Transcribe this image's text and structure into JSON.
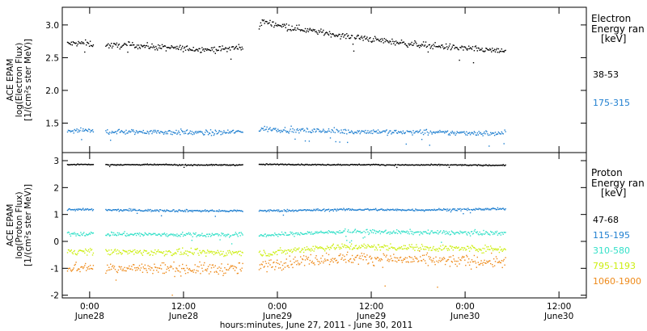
{
  "chart_data": {
    "type": "scatter",
    "x_axis": {
      "label": "hours:minutes, June 27, 2011 - June 30, 2011",
      "range_hours": [
        -3.5,
        63.5
      ],
      "ticks": [
        {
          "hour": 0,
          "time": "0:00",
          "date": "June28"
        },
        {
          "hour": 12,
          "time": "12:00",
          "date": "June28"
        },
        {
          "hour": 24,
          "time": "0:00",
          "date": "June29"
        },
        {
          "hour": 36,
          "time": "12:00",
          "date": "June29"
        },
        {
          "hour": 48,
          "time": "0:00",
          "date": "June30"
        },
        {
          "hour": 60,
          "time": "12:00",
          "date": "June30"
        }
      ]
    },
    "data_gaps_hours": [
      [
        0.5,
        2.0
      ],
      [
        19.6,
        21.6
      ]
    ],
    "data_end_hour": 53.2,
    "panels": [
      {
        "id": "electron",
        "ylabel_lines": [
          "ACE EPAM",
          "log(Electron Flux)",
          "[1/(cm²s ster MeV)]"
        ],
        "ylim": [
          1.05,
          3.27
        ],
        "yticks": [
          "1.5",
          "2.0",
          "2.5",
          "3.0"
        ],
        "legend_title": [
          "Electron",
          "Energy ran",
          "[keV]"
        ],
        "series": [
          {
            "name": "38-53",
            "color": "#000000",
            "spread": 0.045,
            "values": [
              2.72,
              2.73,
              2.7,
              2.69,
              2.7,
              2.68,
              2.66,
              2.65,
              2.64,
              2.63,
              2.65,
              2.67,
              3.06,
              3.01,
              2.96,
              2.92,
              2.88,
              2.84,
              2.81,
              2.78,
              2.75,
              2.72,
              2.7,
              2.68,
              2.66,
              2.64,
              2.62,
              2.6
            ]
          },
          {
            "name": "175-315",
            "color": "#1f7fd0",
            "spread": 0.04,
            "values": [
              1.39,
              1.39,
              1.38,
              1.38,
              1.37,
              1.38,
              1.37,
              1.37,
              1.36,
              1.36,
              1.37,
              1.38,
              1.42,
              1.41,
              1.4,
              1.39,
              1.39,
              1.38,
              1.38,
              1.38,
              1.37,
              1.37,
              1.37,
              1.36,
              1.36,
              1.36,
              1.35,
              1.35
            ]
          }
        ]
      },
      {
        "id": "proton",
        "ylabel_lines": [
          "ACE EPAM",
          "log(Proton Flux)",
          "[1/(cm²s ster MeV)]"
        ],
        "ylim": [
          -2.1,
          3.3
        ],
        "yticks": [
          "-2",
          "-1",
          "0",
          "1",
          "2",
          "3"
        ],
        "legend_title": [
          "Proton",
          "Energy ran",
          "[keV]"
        ],
        "series": [
          {
            "name": "47-68",
            "color": "#000000",
            "spread": 0.02,
            "values": [
              2.88,
              2.88,
              2.87,
              2.87,
              2.87,
              2.87,
              2.87,
              2.86,
              2.86,
              2.86,
              2.86,
              2.86,
              2.88,
              2.88,
              2.88,
              2.87,
              2.87,
              2.87,
              2.87,
              2.87,
              2.86,
              2.86,
              2.86,
              2.86,
              2.86,
              2.85,
              2.85,
              2.85
            ]
          },
          {
            "name": "115-195",
            "color": "#1f7fd0",
            "spread": 0.04,
            "values": [
              1.2,
              1.2,
              1.19,
              1.18,
              1.18,
              1.17,
              1.17,
              1.16,
              1.16,
              1.15,
              1.15,
              1.16,
              1.16,
              1.16,
              1.17,
              1.18,
              1.19,
              1.2,
              1.2,
              1.2,
              1.19,
              1.19,
              1.19,
              1.2,
              1.2,
              1.21,
              1.22,
              1.22
            ]
          },
          {
            "name": "310-580",
            "color": "#33e0c8",
            "spread": 0.08,
            "values": [
              0.3,
              0.3,
              0.3,
              0.29,
              0.28,
              0.28,
              0.27,
              0.27,
              0.27,
              0.26,
              0.26,
              0.27,
              0.25,
              0.27,
              0.3,
              0.33,
              0.36,
              0.38,
              0.38,
              0.37,
              0.36,
              0.36,
              0.35,
              0.35,
              0.34,
              0.34,
              0.33,
              0.33
            ]
          },
          {
            "name": "795-1193",
            "color": "#ccee10",
            "spread": 0.12,
            "values": [
              -0.35,
              -0.35,
              -0.36,
              -0.37,
              -0.38,
              -0.38,
              -0.39,
              -0.39,
              -0.4,
              -0.4,
              -0.4,
              -0.4,
              -0.45,
              -0.38,
              -0.3,
              -0.24,
              -0.2,
              -0.18,
              -0.18,
              -0.19,
              -0.2,
              -0.21,
              -0.22,
              -0.23,
              -0.24,
              -0.25,
              -0.26,
              -0.27
            ]
          },
          {
            "name": "1060-1900",
            "color": "#ee8a1a",
            "spread": 0.22,
            "values": [
              -0.95,
              -0.95,
              -0.96,
              -0.97,
              -0.98,
              -0.98,
              -0.99,
              -1.0,
              -1.0,
              -1.0,
              -1.0,
              -1.0,
              -0.9,
              -0.8,
              -0.72,
              -0.66,
              -0.62,
              -0.6,
              -0.61,
              -0.62,
              -0.64,
              -0.66,
              -0.68,
              -0.7,
              -0.71,
              -0.72,
              -0.73,
              -0.74
            ]
          }
        ]
      }
    ]
  }
}
